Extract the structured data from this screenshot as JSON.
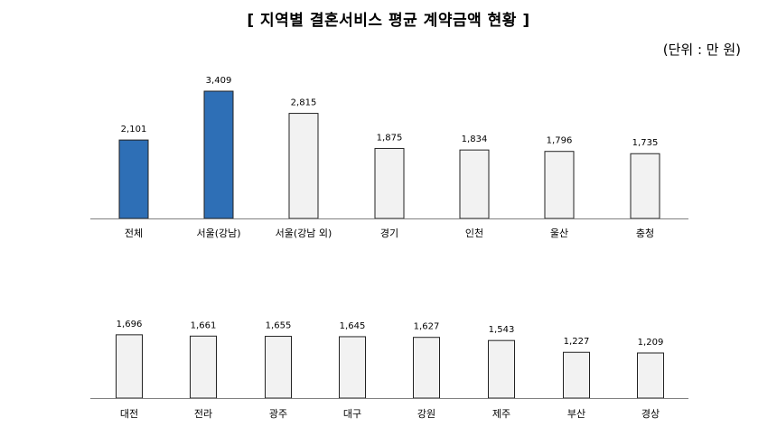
{
  "title": "[ 지역별 결혼서비스 평균 계약금액 현황 ]",
  "unit": "(단위 : 만 원)",
  "colors": {
    "highlight": "#2e6fb6",
    "normal": "#f2f2f2",
    "outline": "#222222",
    "axis": "#808080"
  },
  "chart_data": [
    {
      "type": "bar",
      "categories": [
        "전체",
        "서울(강남)",
        "서울(강남 외)",
        "경기",
        "인천",
        "울산",
        "충청"
      ],
      "values": [
        2101,
        3409,
        2815,
        1875,
        1834,
        1796,
        1735
      ],
      "value_labels": [
        "2,101",
        "3,409",
        "2,815",
        "1,875",
        "1,834",
        "1,796",
        "1,735"
      ],
      "highlighted": [
        true,
        true,
        false,
        false,
        false,
        false,
        false
      ],
      "ylim": [
        0,
        3600
      ],
      "grid": false
    },
    {
      "type": "bar",
      "categories": [
        "대전",
        "전라",
        "광주",
        "대구",
        "강원",
        "제주",
        "부산",
        "경상"
      ],
      "values": [
        1696,
        1661,
        1655,
        1645,
        1627,
        1543,
        1227,
        1209
      ],
      "value_labels": [
        "1,696",
        "1,661",
        "1,655",
        "1,645",
        "1,627",
        "1,543",
        "1,227",
        "1,209"
      ],
      "highlighted": [
        false,
        false,
        false,
        false,
        false,
        false,
        false,
        false
      ],
      "ylim": [
        0,
        3600
      ],
      "grid": false
    }
  ]
}
